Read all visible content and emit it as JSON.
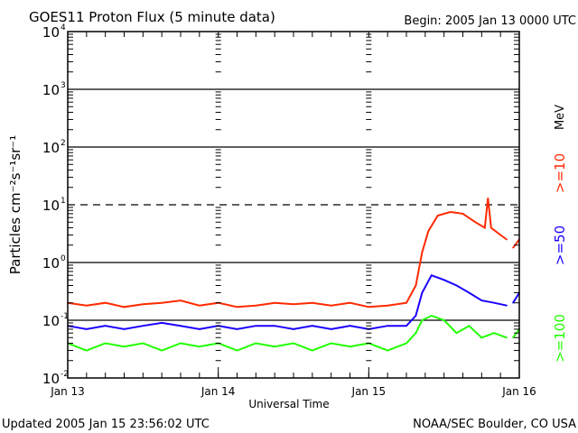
{
  "chart_data": {
    "type": "line",
    "title": "GOES11 Proton Flux (5 minute data)",
    "begin_label": "Begin: 2005 Jan 13 0000 UTC",
    "xlabel": "Universal Time",
    "ylabel": "Particles cm⁻²s⁻¹sr⁻¹",
    "x_unit": "hours since 2005 Jan 13 0000 UTC",
    "xlim": [
      0,
      72
    ],
    "x_ticks": [
      {
        "h": 0,
        "label": "Jan 13"
      },
      {
        "h": 24,
        "label": "Jan 14"
      },
      {
        "h": 48,
        "label": "Jan 15"
      },
      {
        "h": 72,
        "label": "Jan 16"
      }
    ],
    "y_scale": "log",
    "ylim": [
      0.01,
      10000
    ],
    "y_ticks": [
      {
        "exp": "-2"
      },
      {
        "exp": "-1"
      },
      {
        "exp": "0"
      },
      {
        "exp": "1"
      },
      {
        "exp": "2"
      },
      {
        "exp": "3"
      },
      {
        "exp": "4"
      }
    ],
    "units_label": "MeV",
    "series": [
      {
        "name": ">=10",
        "color": "#ff2a00",
        "x": [
          0,
          3,
          6,
          9,
          12,
          15,
          18,
          21,
          24,
          27,
          30,
          33,
          36,
          39,
          42,
          45,
          48,
          51,
          54,
          55.5,
          56.5,
          57.5,
          59,
          61,
          63,
          65,
          66.5,
          67,
          67.5,
          69,
          70,
          70.5,
          71,
          72
        ],
        "y": [
          0.2,
          0.18,
          0.2,
          0.17,
          0.19,
          0.2,
          0.22,
          0.18,
          0.2,
          0.17,
          0.18,
          0.2,
          0.19,
          0.2,
          0.18,
          0.2,
          0.17,
          0.18,
          0.2,
          0.4,
          1.5,
          3.5,
          6.5,
          7.5,
          7,
          5,
          4,
          13,
          4,
          3,
          2.5,
          null,
          1.8,
          2.5
        ]
      },
      {
        "name": ">=50",
        "color": "#1a00ff",
        "x": [
          0,
          3,
          6,
          9,
          12,
          15,
          18,
          21,
          24,
          27,
          30,
          33,
          36,
          39,
          42,
          45,
          48,
          51,
          54,
          55.5,
          56.5,
          58,
          60,
          62,
          64,
          66,
          68,
          70,
          70.5,
          71,
          72
        ],
        "y": [
          0.08,
          0.07,
          0.08,
          0.07,
          0.08,
          0.09,
          0.08,
          0.07,
          0.08,
          0.07,
          0.08,
          0.08,
          0.07,
          0.08,
          0.07,
          0.08,
          0.07,
          0.08,
          0.08,
          0.12,
          0.3,
          0.6,
          0.5,
          0.4,
          0.3,
          0.22,
          0.2,
          0.18,
          null,
          0.2,
          0.3
        ]
      },
      {
        "name": ">=100",
        "color": "#22ff00",
        "x": [
          0,
          3,
          6,
          9,
          12,
          15,
          18,
          21,
          24,
          27,
          30,
          33,
          36,
          39,
          42,
          45,
          48,
          51,
          54,
          55.5,
          56.5,
          58,
          60,
          62,
          64,
          66,
          68,
          70,
          70.5,
          71,
          72
        ],
        "y": [
          0.04,
          0.03,
          0.04,
          0.035,
          0.04,
          0.03,
          0.04,
          0.035,
          0.04,
          0.03,
          0.04,
          0.035,
          0.04,
          0.03,
          0.04,
          0.035,
          0.04,
          0.03,
          0.04,
          0.06,
          0.1,
          0.12,
          0.1,
          0.06,
          0.08,
          0.05,
          0.06,
          0.05,
          null,
          0.05,
          0.07
        ]
      }
    ]
  },
  "footer": {
    "updated": "Updated 2005 Jan 15 23:56:02 UTC",
    "source": "NOAA/SEC Boulder, CO USA"
  }
}
